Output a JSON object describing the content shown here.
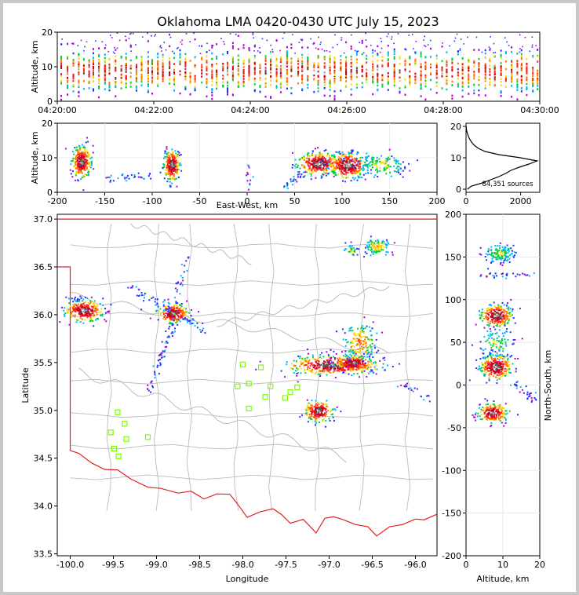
{
  "title": "Oklahoma LMA 0420-0430 UTC July 15, 2023",
  "colors": {
    "border": "#e02020",
    "county": "#bbbbbb",
    "station": "#7cfc00",
    "axis": "#000000"
  },
  "time_height": {
    "ylabel": "Altitude, km",
    "ylim": [
      0,
      20
    ],
    "yticks": [
      "0",
      "10",
      "20"
    ],
    "xticks": [
      "04:20:00",
      "04:22:00",
      "04:24:00",
      "04:26:00",
      "04:28:00",
      "04:30:00"
    ]
  },
  "ew_height": {
    "ylabel": "Altitude, km",
    "xlabel": "East-West, km",
    "xlim": [
      -200,
      200
    ],
    "ylim": [
      0,
      20
    ],
    "xticks": [
      "-200",
      "-150",
      "-100",
      "-50",
      "0",
      "50",
      "100",
      "150",
      "200"
    ],
    "yticks": [
      "0",
      "10",
      "20"
    ]
  },
  "histogram": {
    "annotation": "84,351 sources",
    "xticks": [
      "0",
      "2000"
    ],
    "yticks": [
      "0",
      "10",
      "20"
    ],
    "xlim": [
      0,
      2700
    ],
    "ylim": [
      -1,
      21
    ]
  },
  "plan": {
    "xlabel": "Longitude",
    "ylabel": "Latitude",
    "xlim": [
      -100.15,
      -95.75
    ],
    "ylim": [
      33.48,
      37.05
    ],
    "xticks": [
      "-100.0",
      "-99.5",
      "-99.0",
      "-98.5",
      "-98.0",
      "-97.5",
      "-97.0",
      "-96.5",
      "-96.0"
    ],
    "yticks": [
      "33.5",
      "34.0",
      "34.5",
      "35.0",
      "35.5",
      "36.0",
      "36.5",
      "37.0"
    ]
  },
  "ns_height": {
    "xlabel": "Altitude, km",
    "ylabel": "North-South, km",
    "xticks": [
      "0",
      "10",
      "20"
    ],
    "yticks": [
      "-200",
      "-150",
      "-100",
      "-50",
      "0",
      "50",
      "100",
      "150",
      "200"
    ],
    "xlim": [
      0,
      20
    ],
    "ylim": [
      -200,
      200
    ]
  },
  "chart_data": {
    "type": "scatter",
    "title": "Oklahoma LMA 0420-0430 UTC July 15, 2023",
    "total_sources": "84,351 sources",
    "stations": [
      {
        "lon": -99.45,
        "lat": 34.98
      },
      {
        "lon": -99.37,
        "lat": 34.86
      },
      {
        "lon": -99.53,
        "lat": 34.77
      },
      {
        "lon": -99.35,
        "lat": 34.7
      },
      {
        "lon": -99.49,
        "lat": 34.6
      },
      {
        "lon": -99.44,
        "lat": 34.52
      },
      {
        "lon": -99.1,
        "lat": 34.72
      },
      {
        "lon": -98.0,
        "lat": 35.48
      },
      {
        "lon": -97.79,
        "lat": 35.45
      },
      {
        "lon": -97.93,
        "lat": 35.28
      },
      {
        "lon": -98.06,
        "lat": 35.25
      },
      {
        "lon": -97.68,
        "lat": 35.25
      },
      {
        "lon": -97.74,
        "lat": 35.14
      },
      {
        "lon": -97.51,
        "lat": 35.13
      },
      {
        "lon": -97.45,
        "lat": 35.19
      },
      {
        "lon": -97.37,
        "lat": 35.24
      },
      {
        "lon": -97.93,
        "lat": 35.02
      }
    ],
    "storm_cells": [
      {
        "lon": -99.85,
        "lat": 36.05,
        "ew_km": -175,
        "ns_km": 80,
        "alt_km": 9
      },
      {
        "lon": -98.82,
        "lat": 36.02,
        "ew_km": -80,
        "ns_km": 80,
        "alt_km": 9
      },
      {
        "lon": -97.0,
        "lat": 35.48,
        "ew_km": 75,
        "ns_km": 25,
        "alt_km": 9
      },
      {
        "lon": -96.75,
        "lat": 35.5,
        "ew_km": 105,
        "ns_km": 25,
        "alt_km": 9
      },
      {
        "lon": -97.13,
        "lat": 35.0,
        "ew_km": 105,
        "ns_km": -35,
        "alt_km": 7
      },
      {
        "lon": -96.45,
        "lat": 36.72,
        "ew_km": 120,
        "ns_km": 155,
        "alt_km": 8
      }
    ],
    "altitude_histogram": {
      "altitude_km": [
        0,
        1,
        2,
        3,
        4,
        5,
        6,
        7,
        8,
        9,
        10,
        11,
        12,
        13,
        14,
        15,
        16,
        17,
        18,
        19,
        20
      ],
      "counts": [
        50,
        200,
        600,
        900,
        1200,
        1450,
        1650,
        1950,
        2300,
        2600,
        2000,
        1200,
        700,
        450,
        300,
        200,
        130,
        80,
        40,
        15,
        5
      ]
    }
  }
}
